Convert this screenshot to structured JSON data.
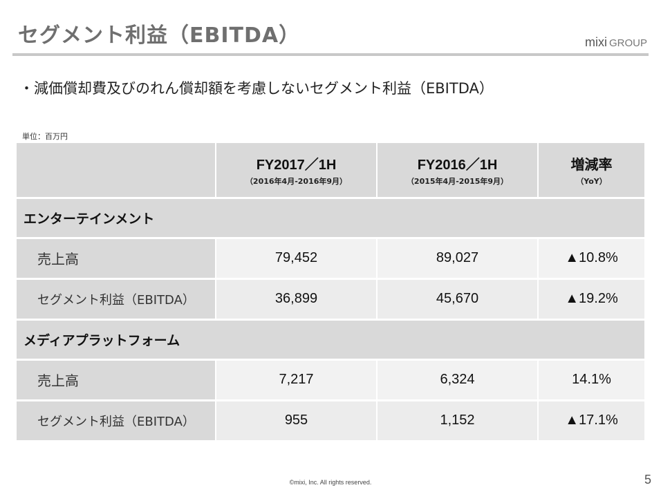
{
  "header": {
    "title": "セグメント利益（EBITDA）"
  },
  "logo": {
    "brand": "mixi",
    "suffix": "GROUP"
  },
  "bullet": "・減価償却費及びのれん償却額を考慮しないセグメント利益（EBITDA）",
  "unit": "単位：百万円",
  "table": {
    "columns": [
      {
        "main": "",
        "sub": ""
      },
      {
        "main": "FY2017／1H",
        "sub": "（2016年4月-2016年9月）"
      },
      {
        "main": "FY2016／1H",
        "sub": "（2015年4月-2015年9月）"
      },
      {
        "main": "増減率",
        "sub": "（YoY）"
      }
    ],
    "sections": [
      {
        "name": "エンターテインメント",
        "rows": [
          {
            "label": "売上高",
            "fy2017": "79,452",
            "fy2016": "89,027",
            "yoy": "▲10.8%"
          },
          {
            "label": "セグメント利益（EBITDA）",
            "fy2017": "36,899",
            "fy2016": "45,670",
            "yoy": "▲19.2%"
          }
        ]
      },
      {
        "name": "メディアプラットフォーム",
        "rows": [
          {
            "label": "売上高",
            "fy2017": "7,217",
            "fy2016": "6,324",
            "yoy": "14.1%"
          },
          {
            "label": "セグメント利益（EBITDA）",
            "fy2017": "955",
            "fy2016": "1,152",
            "yoy": "▲17.1%"
          }
        ]
      }
    ]
  },
  "footer": {
    "copyright": "©mixi, Inc. All rights reserved.",
    "page": "5"
  }
}
